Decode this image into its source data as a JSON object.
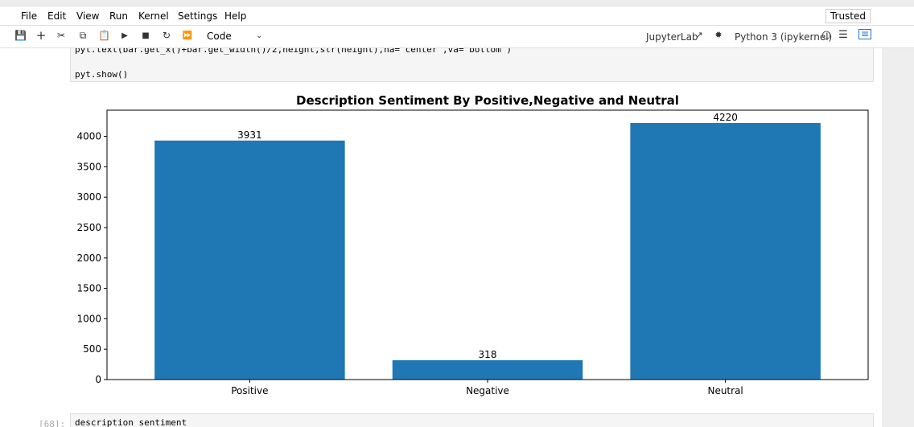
{
  "menu": [
    "File",
    "Edit",
    "View",
    "Run",
    "Kernel",
    "Settings",
    "Help"
  ],
  "trusted_label": "Trusted",
  "toolbar": {
    "cell_type": "Code",
    "jupyterlab_label": "JupyterLab",
    "kernel_name": "Python 3 (ipykernel)"
  },
  "code_cell": {
    "line1": "pyt.text(bar.get_x()+bar.get_width()/2,height,str(height),ha='center',va='bottom')",
    "line2": "pyt.show()"
  },
  "next_cell": {
    "prompt": "[68]:",
    "code": "description_sentiment"
  },
  "chart_data": {
    "type": "bar",
    "title": "Description Sentiment By Positive,Negative and Neutral",
    "categories": [
      "Positive",
      "Negative",
      "Neutral"
    ],
    "values": [
      3931,
      318,
      4220
    ],
    "data_labels": [
      "3931",
      "318",
      "4220"
    ],
    "yticks": [
      0,
      500,
      1000,
      1500,
      2000,
      2500,
      3000,
      3500,
      4000
    ],
    "ylim": [
      0,
      4431
    ],
    "bar_color": "#1f77b4",
    "xlabel": "",
    "ylabel": ""
  }
}
